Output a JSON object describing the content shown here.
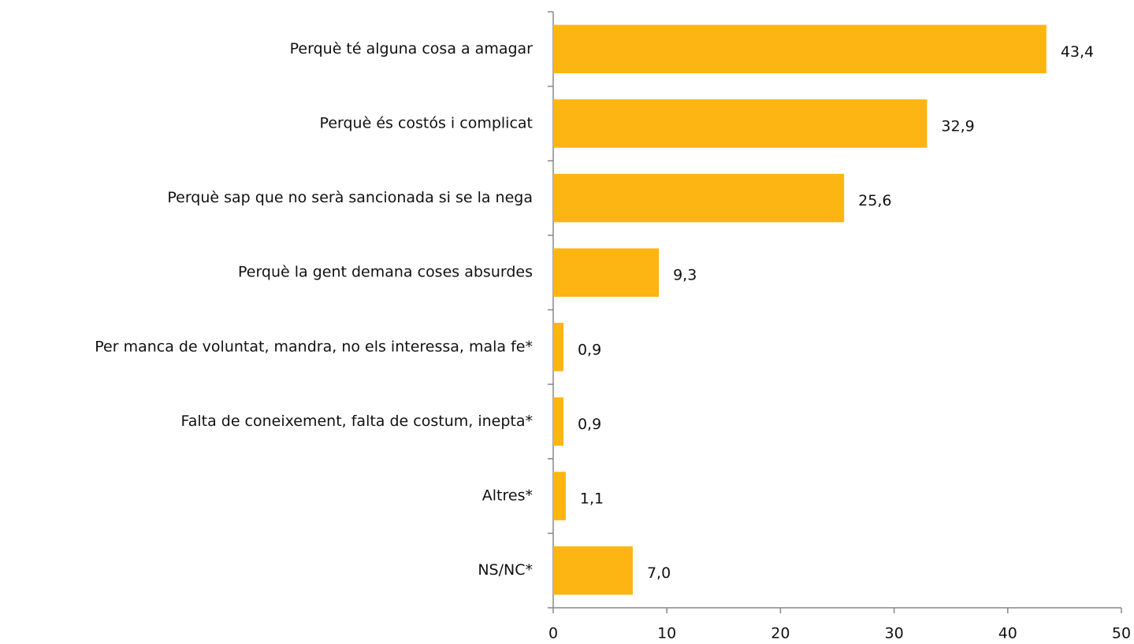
{
  "chart_data": {
    "type": "bar",
    "orientation": "horizontal",
    "categories": [
      "Perquè té alguna cosa a amagar",
      "Perquè és costós i complicat",
      "Perquè sap que no serà sancionada si se la nega",
      "Perquè la gent demana coses absurdes",
      "Per manca de voluntat, mandra, no els interessa, mala fe*",
      "Falta de coneixement, falta de costum, inepta*",
      "Altres*",
      "NS/NC*"
    ],
    "values": [
      43.4,
      32.9,
      25.6,
      9.3,
      0.9,
      0.9,
      1.1,
      7.0
    ],
    "value_labels": [
      "43,4",
      "32,9",
      "25,6",
      "9,3",
      "0,9",
      "0,9",
      "1,1",
      "7,0"
    ],
    "color": "#fdb513",
    "xlim": [
      0,
      50
    ],
    "xticks": [
      0,
      10,
      20,
      30,
      40,
      50
    ],
    "grid": false
  }
}
